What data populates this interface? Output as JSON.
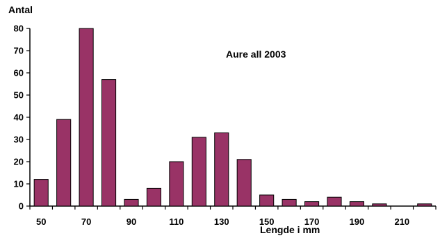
{
  "chart_data": {
    "type": "bar",
    "title": "Aure all 2003",
    "xlabel": "Lengde i mm",
    "ylabel": "Antal",
    "categories": [
      "50",
      "60",
      "70",
      "80",
      "90",
      "100",
      "110",
      "120",
      "130",
      "140",
      "150",
      "160",
      "170",
      "180",
      "190",
      "200",
      "210",
      "220"
    ],
    "x_tick_labels": [
      "50",
      "70",
      "90",
      "110",
      "130",
      "150",
      "170",
      "190",
      "210"
    ],
    "values": [
      12,
      39,
      80,
      57,
      3,
      8,
      20,
      31,
      33,
      21,
      5,
      3,
      2,
      4,
      2,
      1,
      0,
      1
    ],
    "ylim": [
      0,
      80
    ],
    "y_ticks": [
      0,
      10,
      20,
      30,
      40,
      50,
      60,
      70,
      80
    ],
    "grid": false,
    "legend": "none",
    "colors": {
      "bar_fill": "#993366",
      "bar_stroke": "#000000",
      "axis": "#000000",
      "text": "#000000"
    }
  }
}
